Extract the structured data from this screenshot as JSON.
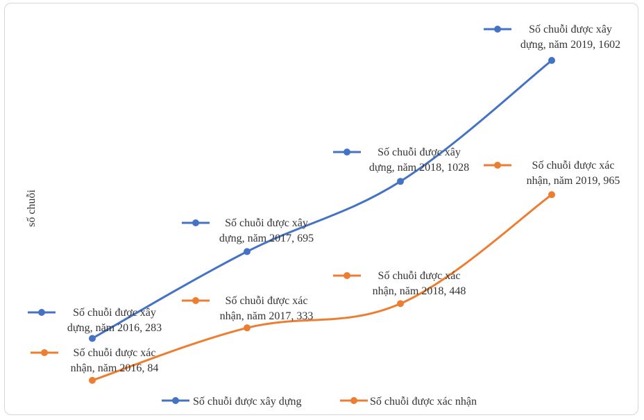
{
  "chart_data": {
    "type": "line",
    "title": "",
    "xlabel": "",
    "ylabel": "số chuỗi",
    "categories": [
      "năm 2016",
      "năm 2017",
      "năm 2018",
      "năm 2019"
    ],
    "ylim": [
      0,
      1700
    ],
    "grid": false,
    "legend_position": "bottom",
    "series": [
      {
        "name": "Số chuỗi được xây dựng",
        "color": "#4472C4",
        "values": [
          283,
          695,
          1028,
          1602
        ],
        "data_labels": [
          [
            "Số chuỗi được xây",
            "dựng, năm 2016, 283"
          ],
          [
            "Số chuỗi được xây",
            "dựng, năm 2017, 695"
          ],
          [
            "Số chuỗi được xây",
            "dựng, năm 2018, 1028"
          ],
          [
            "Số chuỗi được xây",
            "dựng, năm 2019, 1602"
          ]
        ]
      },
      {
        "name": "Số chuỗi được xác nhận",
        "color": "#ED7D31",
        "values": [
          84,
          333,
          448,
          965
        ],
        "data_labels": [
          [
            "Số chuỗi được xác",
            "nhận, năm 2016, 84"
          ],
          [
            "Số chuỗi được xác",
            "nhận, năm 2017, 333"
          ],
          [
            "Số chuỗi được xác",
            "nhận, năm 2018, 448"
          ],
          [
            "Số chuỗi được xác",
            "nhận, năm 2019, 965"
          ]
        ]
      }
    ]
  }
}
